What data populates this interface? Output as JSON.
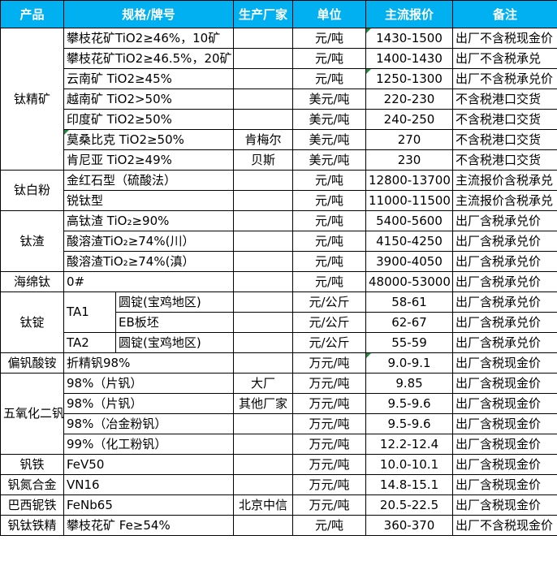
{
  "colors": {
    "header_bg": "#00B0F0",
    "header_text": "#FFFFFF",
    "border": "#000000",
    "comment_marker_green": "#1E8E3E"
  },
  "header": {
    "cols": [
      "产品",
      "规格/牌号",
      "生产厂家",
      "单位",
      "主流报价",
      "备注"
    ]
  },
  "table": {
    "rows": [
      {
        "cells": [
          {
            "k": "product",
            "t": "钛精矿",
            "rs": 7
          },
          {
            "k": "spec",
            "t": "攀枝花矿TiO2≥46%，10矿",
            "cs": 2
          },
          {
            "k": "mfr",
            "t": ""
          },
          {
            "k": "unit",
            "t": "元/吨"
          },
          {
            "k": "price",
            "t": "1430-1500",
            "mark": true
          },
          {
            "k": "note",
            "t": "出厂不含税现金价"
          }
        ]
      },
      {
        "cells": [
          {
            "k": "spec",
            "t": "攀枝花矿TiO2≥46.5%，20矿",
            "cs": 2
          },
          {
            "k": "mfr",
            "t": ""
          },
          {
            "k": "unit",
            "t": "元/吨"
          },
          {
            "k": "price",
            "t": "1400-1430"
          },
          {
            "k": "note",
            "t": "出厂不含税承兑"
          }
        ]
      },
      {
        "cells": [
          {
            "k": "spec",
            "t": "云南矿 TiO2≥45%",
            "cs": 2
          },
          {
            "k": "mfr",
            "t": ""
          },
          {
            "k": "unit",
            "t": "元/吨"
          },
          {
            "k": "price",
            "t": "1250-1300",
            "mark": true
          },
          {
            "k": "note",
            "t": "出厂不含税承兑价"
          }
        ]
      },
      {
        "cells": [
          {
            "k": "spec",
            "t": "越南矿 TiO2>50%",
            "cs": 2
          },
          {
            "k": "mfr",
            "t": ""
          },
          {
            "k": "unit",
            "t": "美元/吨"
          },
          {
            "k": "price",
            "t": "220-230"
          },
          {
            "k": "note",
            "t": "不含税港口交货"
          }
        ]
      },
      {
        "cells": [
          {
            "k": "spec",
            "t": "印度矿 TiO2≥50%",
            "cs": 2
          },
          {
            "k": "mfr",
            "t": ""
          },
          {
            "k": "unit",
            "t": "美元/吨"
          },
          {
            "k": "price",
            "t": "240-250"
          },
          {
            "k": "note",
            "t": "不含税港口交货"
          }
        ]
      },
      {
        "cells": [
          {
            "k": "spec",
            "t": "莫桑比克 TiO2≥50%",
            "cs": 2,
            "mark": true
          },
          {
            "k": "mfr",
            "t": "肯梅尔"
          },
          {
            "k": "unit",
            "t": "美元/吨"
          },
          {
            "k": "price",
            "t": "270"
          },
          {
            "k": "note",
            "t": "不含税港口交货"
          }
        ]
      },
      {
        "cells": [
          {
            "k": "spec",
            "t": "肯尼亚 TiO2≥49%",
            "cs": 2
          },
          {
            "k": "mfr",
            "t": "贝斯"
          },
          {
            "k": "unit",
            "t": "美元/吨"
          },
          {
            "k": "price",
            "t": "230"
          },
          {
            "k": "note",
            "t": "不含税港口交货"
          }
        ]
      },
      {
        "cells": [
          {
            "k": "product",
            "t": "钛白粉",
            "rs": 2
          },
          {
            "k": "spec",
            "t": "金红石型（硫酸法）",
            "cs": 2
          },
          {
            "k": "mfr",
            "t": ""
          },
          {
            "k": "unit",
            "t": "元/吨"
          },
          {
            "k": "price",
            "t": "12800-13700"
          },
          {
            "k": "note",
            "t": "主流报价含税承兑"
          }
        ]
      },
      {
        "cells": [
          {
            "k": "spec",
            "t": "锐钛型",
            "cs": 2
          },
          {
            "k": "mfr",
            "t": ""
          },
          {
            "k": "unit",
            "t": "元/吨"
          },
          {
            "k": "price",
            "t": "11000-11500"
          },
          {
            "k": "note",
            "t": "主流报价含税承兑"
          }
        ]
      },
      {
        "cells": [
          {
            "k": "product",
            "t": "钛渣",
            "rs": 3
          },
          {
            "k": "spec",
            "t": "高钛渣 TiO₂≥90%",
            "cs": 2
          },
          {
            "k": "mfr",
            "t": ""
          },
          {
            "k": "unit",
            "t": "元/吨"
          },
          {
            "k": "price",
            "t": "5400-5600"
          },
          {
            "k": "note",
            "t": "出厂含税承兑价"
          }
        ]
      },
      {
        "cells": [
          {
            "k": "spec",
            "t": "酸溶渣TiO₂≥74%(川）",
            "cs": 2
          },
          {
            "k": "mfr",
            "t": ""
          },
          {
            "k": "unit",
            "t": "元/吨"
          },
          {
            "k": "price",
            "t": "4150-4250"
          },
          {
            "k": "note",
            "t": "出厂含税承兑价"
          }
        ]
      },
      {
        "cells": [
          {
            "k": "spec",
            "t": "酸溶渣TiO₂≥74%(滇）",
            "cs": 2
          },
          {
            "k": "mfr",
            "t": ""
          },
          {
            "k": "unit",
            "t": "元/吨"
          },
          {
            "k": "price",
            "t": "3900-4050"
          },
          {
            "k": "note",
            "t": "出厂含税承兑价"
          }
        ]
      },
      {
        "cells": [
          {
            "k": "product",
            "t": "海绵钛"
          },
          {
            "k": "spec",
            "t": "0#",
            "cs": 2
          },
          {
            "k": "mfr",
            "t": ""
          },
          {
            "k": "unit",
            "t": "元/吨"
          },
          {
            "k": "price",
            "t": "48000-53000"
          },
          {
            "k": "note",
            "t": "出厂含税承兑价"
          }
        ]
      },
      {
        "cells": [
          {
            "k": "product",
            "t": "钛锭",
            "rs": 3
          },
          {
            "k": "spec-grade",
            "t": "TA1",
            "rs": 2
          },
          {
            "k": "spec-form",
            "t": "圆锭(宝鸡地区)"
          },
          {
            "k": "mfr",
            "t": ""
          },
          {
            "k": "unit",
            "t": "元/公斤"
          },
          {
            "k": "price",
            "t": "58-61"
          },
          {
            "k": "note",
            "t": "出厂含税承兑价"
          }
        ]
      },
      {
        "cells": [
          {
            "k": "spec-form",
            "t": "EB板坯"
          },
          {
            "k": "mfr",
            "t": ""
          },
          {
            "k": "unit",
            "t": "元/公斤"
          },
          {
            "k": "price",
            "t": "62-67"
          },
          {
            "k": "note",
            "t": "出厂含税承兑价"
          }
        ]
      },
      {
        "cells": [
          {
            "k": "spec-grade",
            "t": "TA2"
          },
          {
            "k": "spec-form",
            "t": "圆锭(宝鸡地区)"
          },
          {
            "k": "mfr",
            "t": ""
          },
          {
            "k": "unit",
            "t": "元/公斤"
          },
          {
            "k": "price",
            "t": "55-59"
          },
          {
            "k": "note",
            "t": "出厂含税承兑价"
          }
        ]
      },
      {
        "cells": [
          {
            "k": "product",
            "t": "偏钒酸铵"
          },
          {
            "k": "spec",
            "t": "折精钒98%",
            "cs": 2
          },
          {
            "k": "mfr",
            "t": ""
          },
          {
            "k": "unit",
            "t": "万元/吨"
          },
          {
            "k": "price",
            "t": "9.0-9.1",
            "mark": true
          },
          {
            "k": "note",
            "t": "出厂含税现金价"
          }
        ]
      },
      {
        "cells": [
          {
            "k": "product",
            "t": "五氧化二钒",
            "rs": 4
          },
          {
            "k": "spec",
            "t": "98%（片钒）",
            "cs": 2
          },
          {
            "k": "mfr",
            "t": "大厂"
          },
          {
            "k": "unit",
            "t": "万元/吨"
          },
          {
            "k": "price",
            "t": "9.85"
          },
          {
            "k": "note",
            "t": "出厂含税现金价"
          }
        ]
      },
      {
        "cells": [
          {
            "k": "spec",
            "t": "98%（片钒）",
            "cs": 2
          },
          {
            "k": "mfr",
            "t": "其他厂家"
          },
          {
            "k": "unit",
            "t": "万元/吨"
          },
          {
            "k": "price",
            "t": "9.5-9.6"
          },
          {
            "k": "note",
            "t": "出厂含税现金价"
          }
        ]
      },
      {
        "cells": [
          {
            "k": "spec",
            "t": "98%（冶金粉钒）",
            "cs": 2
          },
          {
            "k": "mfr",
            "t": ""
          },
          {
            "k": "unit",
            "t": "万元/吨"
          },
          {
            "k": "price",
            "t": "9.5-9.6"
          },
          {
            "k": "note",
            "t": "出厂含税现金价"
          }
        ]
      },
      {
        "cells": [
          {
            "k": "spec",
            "t": "99%（化工粉钒）",
            "cs": 2
          },
          {
            "k": "mfr",
            "t": ""
          },
          {
            "k": "unit",
            "t": "万元/吨"
          },
          {
            "k": "price",
            "t": "12.2-12.4"
          },
          {
            "k": "note",
            "t": "出厂含税现金价"
          }
        ]
      },
      {
        "cells": [
          {
            "k": "product",
            "t": "钒铁"
          },
          {
            "k": "spec",
            "t": "FeV50",
            "cs": 2
          },
          {
            "k": "mfr",
            "t": ""
          },
          {
            "k": "unit",
            "t": "万元/吨"
          },
          {
            "k": "price",
            "t": "10.0-10.1"
          },
          {
            "k": "note",
            "t": "出厂含税现金价"
          }
        ]
      },
      {
        "cells": [
          {
            "k": "product",
            "t": "钒氮合金"
          },
          {
            "k": "spec",
            "t": "VN16",
            "cs": 2
          },
          {
            "k": "mfr",
            "t": ""
          },
          {
            "k": "unit",
            "t": "万元/吨"
          },
          {
            "k": "price",
            "t": "14.8-15.1"
          },
          {
            "k": "note",
            "t": "出厂含税现金价"
          }
        ]
      },
      {
        "cells": [
          {
            "k": "product",
            "t": "巴西铌铁"
          },
          {
            "k": "spec",
            "t": "FeNb65",
            "cs": 2
          },
          {
            "k": "mfr",
            "t": "北京中信"
          },
          {
            "k": "unit",
            "t": "万元/吨"
          },
          {
            "k": "price",
            "t": "20.5-22.5"
          },
          {
            "k": "note",
            "t": "出厂含税现金价"
          }
        ]
      },
      {
        "cells": [
          {
            "k": "product",
            "t": "钒钛铁精"
          },
          {
            "k": "spec",
            "t": "攀枝花矿 Fe≥54%",
            "cs": 2
          },
          {
            "k": "mfr",
            "t": ""
          },
          {
            "k": "unit",
            "t": "元/吨"
          },
          {
            "k": "price",
            "t": "360-370"
          },
          {
            "k": "note",
            "t": "出厂不含税现金价"
          }
        ]
      }
    ]
  }
}
